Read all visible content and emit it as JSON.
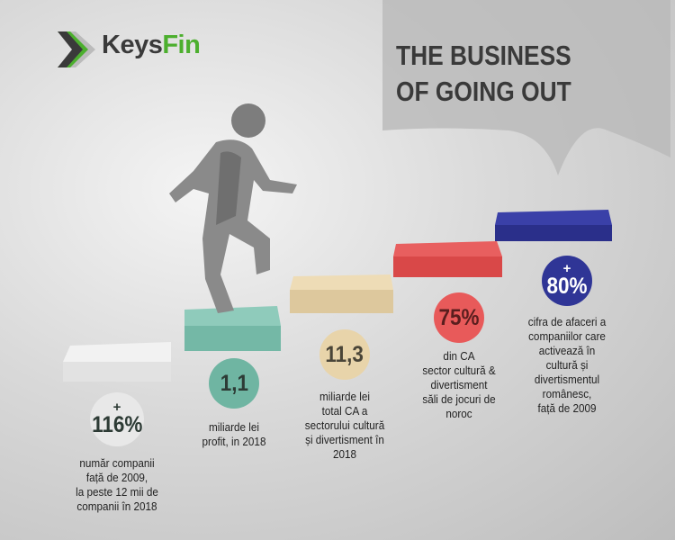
{
  "logo": {
    "part1": "Keys",
    "part2": "Fin",
    "color1": "#3a3a3a",
    "color2": "#4caf2e"
  },
  "title": {
    "line1": "THE BUSINESS",
    "line2": "OF GOING OUT"
  },
  "stats": [
    {
      "prefix": "+",
      "value": "116%",
      "description": [
        "număr companii",
        "față de 2009,",
        "la peste 12 mii de",
        "companii în 2018"
      ],
      "color": "#e8e8e8"
    },
    {
      "prefix": "",
      "value": "1,1",
      "description": [
        "miliarde lei",
        "profit, in 2018"
      ],
      "color": "#6fb5a2"
    },
    {
      "prefix": "",
      "value": "11,3",
      "description": [
        "miliarde lei",
        "total CA a",
        "sectorului cultură",
        "și divertisment în",
        "2018"
      ],
      "color": "#e8d4aa"
    },
    {
      "prefix": "",
      "value": "75%",
      "description": [
        "din CA",
        "sector cultură &",
        "divertisment",
        "săli de jocuri de",
        "noroc"
      ],
      "color": "#e85a5a"
    },
    {
      "prefix": "+",
      "value": "80%",
      "description": [
        "cifra de afaceri a",
        "companiilor care",
        "activează în",
        "cultură și",
        "divertismentul",
        "românesc,",
        "față de 2009"
      ],
      "color": "#2f3596"
    }
  ]
}
